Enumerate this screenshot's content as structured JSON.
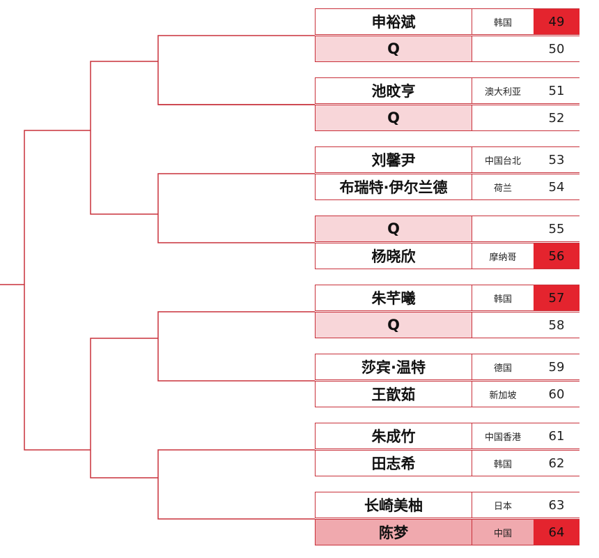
{
  "colors": {
    "line": "#c8303a",
    "seed_fill": "#e4242e",
    "qualifier_fill": "#f8d6d9",
    "highlight_fill": "#f0a9ae"
  },
  "entries": [
    {
      "name": "申裕斌",
      "country": "韩国",
      "number": "49",
      "seeded": true
    },
    {
      "name": "Q",
      "country": "",
      "number": "50",
      "qualifier": true
    },
    {
      "name": "池旼亨",
      "country": "澳大利亚",
      "number": "51"
    },
    {
      "name": "Q",
      "country": "",
      "number": "52",
      "qualifier": true
    },
    {
      "name": "刘馨尹",
      "country": "中国台北",
      "number": "53"
    },
    {
      "name": "布瑞特·伊尔兰德",
      "country": "荷兰",
      "number": "54"
    },
    {
      "name": "Q",
      "country": "",
      "number": "55",
      "qualifier": true
    },
    {
      "name": "杨晓欣",
      "country": "摩纳哥",
      "number": "56",
      "seeded": true
    },
    {
      "name": "朱芊曦",
      "country": "韩国",
      "number": "57",
      "seeded": true
    },
    {
      "name": "Q",
      "country": "",
      "number": "58",
      "qualifier": true
    },
    {
      "name": "莎宾·温特",
      "country": "德国",
      "number": "59"
    },
    {
      "name": "王歆茹",
      "country": "新加坡",
      "number": "60"
    },
    {
      "name": "朱成竹",
      "country": "中国香港",
      "number": "61"
    },
    {
      "name": "田志希",
      "country": "韩国",
      "number": "62"
    },
    {
      "name": "长崎美柚",
      "country": "日本",
      "number": "63"
    },
    {
      "name": "陈梦",
      "country": "中国",
      "number": "64",
      "seeded": true,
      "highlight": true
    }
  ]
}
